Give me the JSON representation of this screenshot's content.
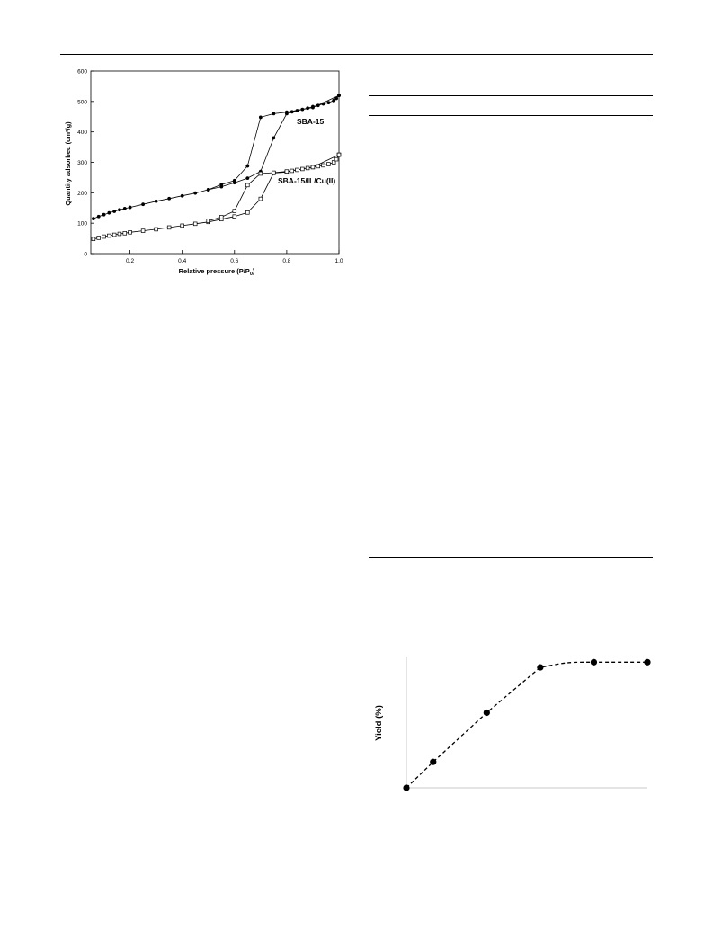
{
  "chart_data": [
    {
      "type": "scatter",
      "title": "",
      "xlabel": "Relative pressure (P/P",
      "xlabel_sub": "0",
      "xlabel_tail": ")",
      "ylabel": "Quantity adsorbed (cm³/g)",
      "xlim": [
        0.05,
        1.0
      ],
      "ylim": [
        0,
        600
      ],
      "xticks": [
        "0.2",
        "0.4",
        "0.6",
        "0.8",
        "1.0"
      ],
      "xtick_values": [
        0.2,
        0.4,
        0.6,
        0.8,
        1.0
      ],
      "yticks": [
        "0",
        "100",
        "200",
        "300",
        "400",
        "500",
        "600"
      ],
      "ytick_values": [
        0,
        100,
        200,
        300,
        400,
        500,
        600
      ],
      "annotations": [
        "SBA-15",
        "SBA-15/IL/Cu(II)"
      ],
      "series": [
        {
          "name": "SBA-15",
          "marker": "filled-circle",
          "color": "#000000",
          "adsorption": {
            "x": [
              0.06,
              0.08,
              0.1,
              0.12,
              0.14,
              0.16,
              0.18,
              0.2,
              0.25,
              0.3,
              0.35,
              0.4,
              0.45,
              0.5,
              0.55,
              0.6,
              0.65,
              0.7,
              0.75,
              0.8,
              0.82,
              0.84,
              0.86,
              0.88,
              0.9,
              0.92,
              0.94,
              0.96,
              0.98,
              0.99,
              1.0
            ],
            "y": [
              115,
              122,
              128,
              134,
              139,
              144,
              148,
              152,
              162,
              172,
              181,
              190,
              199,
              210,
              220,
              233,
              248,
              270,
              380,
              460,
              466,
              470,
              474,
              478,
              483,
              487,
              492,
              496,
              503,
              510,
              520
            ]
          },
          "desorption": {
            "x": [
              1.0,
              0.9,
              0.8,
              0.75,
              0.7,
              0.65,
              0.6,
              0.55,
              0.5
            ],
            "y": [
              520,
              480,
              465,
              460,
              448,
              288,
              240,
              227,
              210
            ]
          }
        },
        {
          "name": "SBA-15/IL/Cu(II)",
          "marker": "open-square",
          "color": "#000000",
          "adsorption": {
            "x": [
              0.06,
              0.08,
              0.1,
              0.12,
              0.14,
              0.16,
              0.18,
              0.2,
              0.25,
              0.3,
              0.35,
              0.4,
              0.45,
              0.5,
              0.55,
              0.6,
              0.65,
              0.7,
              0.75,
              0.8,
              0.82,
              0.84,
              0.86,
              0.88,
              0.9,
              0.92,
              0.94,
              0.96,
              0.98,
              0.99,
              1.0
            ],
            "y": [
              48,
              52,
              56,
              59,
              62,
              65,
              67,
              70,
              75,
              80,
              86,
              92,
              98,
              104,
              113,
              122,
              135,
              180,
              265,
              268,
              272,
              275,
              278,
              281,
              284,
              287,
              290,
              294,
              300,
              310,
              325
            ]
          },
          "desorption": {
            "x": [
              1.0,
              0.9,
              0.8,
              0.75,
              0.7,
              0.65,
              0.6,
              0.55,
              0.5
            ],
            "y": [
              325,
              284,
              270,
              266,
              263,
              225,
              140,
              120,
              108
            ]
          }
        }
      ]
    },
    {
      "type": "line",
      "title": "",
      "xlabel": "",
      "ylabel": "Yield (%)",
      "line_style": "dashed",
      "marker": "filled-circle",
      "color": "#000000",
      "x": [
        0,
        1,
        3,
        5,
        7,
        9
      ],
      "y": [
        0,
        20,
        58,
        93,
        97,
        97
      ],
      "xlim": [
        0,
        9
      ],
      "ylim": [
        0,
        100
      ]
    }
  ]
}
